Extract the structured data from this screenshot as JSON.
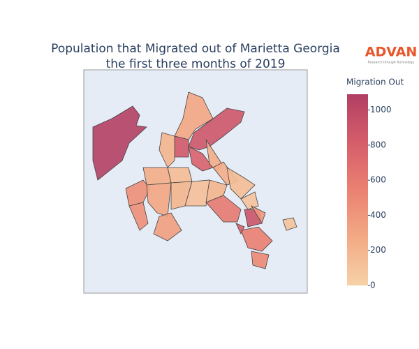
{
  "chart_data": {
    "type": "choropleth",
    "title": [
      "Population that Migrated out of Marietta Georgia",
      "the first three months of 2019"
    ],
    "logo": {
      "name": "ADVAN",
      "tagline": "Research through Technology"
    },
    "colorbar_title": "Migration Out",
    "values": [
      1080,
      300,
      880,
      850,
      200,
      780,
      250,
      150,
      250,
      450,
      300,
      200,
      120,
      200,
      600,
      250,
      150,
      100,
      900,
      400,
      350,
      450,
      550,
      500,
      100,
      800
    ],
    "colorscale": [
      "#f6d2a9",
      "#f3aa84",
      "#ea8171",
      "#d55d6a",
      "#b13f64"
    ],
    "clim": [
      0,
      1090
    ],
    "cticks": [
      0,
      200,
      400,
      600,
      800,
      1000
    ]
  }
}
